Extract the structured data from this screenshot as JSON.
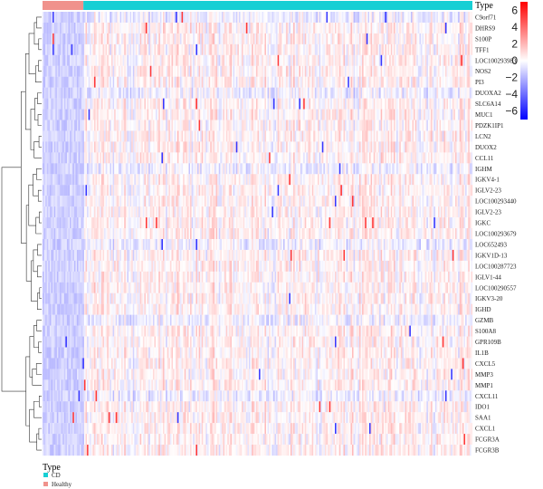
{
  "chart_data": {
    "type": "heatmap",
    "annotation": {
      "title": "Type",
      "groups": [
        {
          "name": "Healthy",
          "color": "#F0928C",
          "fraction": 0.095
        },
        {
          "name": "CD",
          "color": "#17CFD4",
          "fraction": 0.905
        }
      ]
    },
    "rows": [
      "C9orf71",
      "DHRS9",
      "S100P",
      "TFF1",
      "LOC100293983",
      "NOS2",
      "PI3",
      "DUOXA2",
      "SLC6A14",
      "MUC1",
      "PDZK1IP1",
      "LCN2",
      "DUOX2",
      "CCL11",
      "IGHM",
      "IGKV4-1",
      "IGLV2-23",
      "LOC100293440",
      "IGLV2-23",
      "IGKC",
      "LOC100293679",
      "LOC652493",
      "IGKV1D-13",
      "LOC100287723",
      "IGLV1-44",
      "LOC100290557",
      "IGKV3-20",
      "IGHD",
      "GZMB",
      "S100A8",
      "GPR109B",
      "IL1B",
      "CXCL5",
      "MMP3",
      "MMP1",
      "CXCL11",
      "IDO1",
      "SAA1",
      "CXCL1",
      "FCGR3A",
      "FCGR3B"
    ],
    "colorbar": {
      "ticks": [
        6,
        4,
        2,
        0,
        -2,
        -4,
        -6
      ],
      "range": [
        -7,
        7
      ],
      "colors": {
        "low": "#0000FF",
        "mid": "#FFFFFF",
        "high": "#FF0000"
      }
    },
    "legend": {
      "title": "Type",
      "items": [
        {
          "label": "CD",
          "color": "#17CFD4"
        },
        {
          "label": "Healthy",
          "color": "#F0928C"
        }
      ]
    }
  }
}
